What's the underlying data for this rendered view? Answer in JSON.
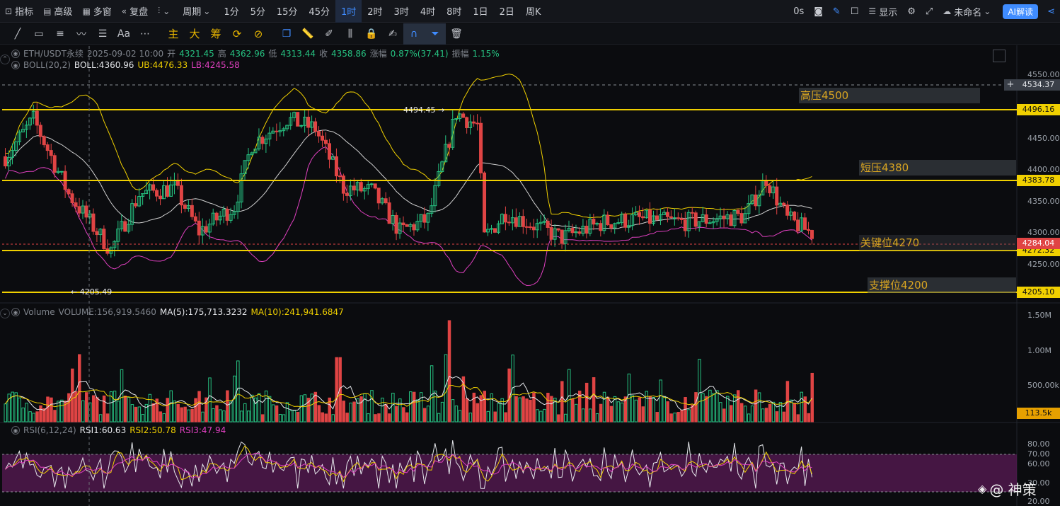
{
  "toolbar": {
    "indicators": "指标",
    "advanced": "高级",
    "multi_window": "多窗",
    "replay": "复盘",
    "period": "周期",
    "timeframes": [
      "1分",
      "5分",
      "15分",
      "45分",
      "1时",
      "2时",
      "3时",
      "4时",
      "8时",
      "1日",
      "2日",
      "周K"
    ],
    "active_timeframe": "1时",
    "countdown": "0s",
    "display": "显示",
    "unnamed": "未命名",
    "ai_read": "AI解读"
  },
  "drawbar": {
    "main": "主",
    "big": "大",
    "chips": "筹"
  },
  "main_legend": {
    "symbol": "ETH/USDT永续",
    "datetime": "2025-09-02 10:00",
    "open_label": "开",
    "open": "4321.45",
    "high_label": "高",
    "high": "4362.96",
    "low_label": "低",
    "low": "4313.44",
    "close_label": "收",
    "close": "4358.86",
    "change_label": "涨幅",
    "change": "0.87%(37.41)",
    "amp_label": "振幅",
    "amp": "1.15%"
  },
  "boll_legend": {
    "name": "BOLL(20,2)",
    "boll": "BOLL:4360.96",
    "ub": "UB:4476.33",
    "lb": "LB:4245.58"
  },
  "volume_legend": {
    "name": "Volume",
    "volume": "VOLUME:156,919.5460",
    "ma5": "MA(5):175,713.3232",
    "ma10": "MA(10):241,941.6847"
  },
  "rsi_legend": {
    "name": "RSI(6,12,24)",
    "rsi1": "RSI1:60.63",
    "rsi2": "RSI2:50.78",
    "rsi3": "RSI3:47.94"
  },
  "price_axis": [
    "4550.00",
    "4450.00",
    "4400.00",
    "4350.00",
    "4300.00",
    "4250.00"
  ],
  "volume_axis": [
    "1.50M",
    "1.00M",
    "500.00k"
  ],
  "rsi_axis": [
    "80.00",
    "70.00",
    "60.00",
    "30.00",
    "20.00"
  ],
  "price_tags": {
    "crosshair": "4534.37",
    "high_line": "4496.16",
    "short_line": "4383.78",
    "last": "4284.04",
    "key_line": "4272.32",
    "support_line": "4205.10",
    "volume_last": "113.5k"
  },
  "zones": {
    "high": "高压4500",
    "short": "短压4380",
    "key": "关键位4270",
    "support": "支撑位4200"
  },
  "annotations": {
    "max_price": "4494.45",
    "min_price": "4205.49"
  },
  "watermark": "@ 神策",
  "colors": {
    "up": "#26c281",
    "down": "#e04444",
    "level_line": "#f0d000",
    "boll_mid": "#d0d0d0",
    "boll_upper": "#f0d000",
    "boll_lower": "#e040c0",
    "active": "#3f8cff"
  }
}
